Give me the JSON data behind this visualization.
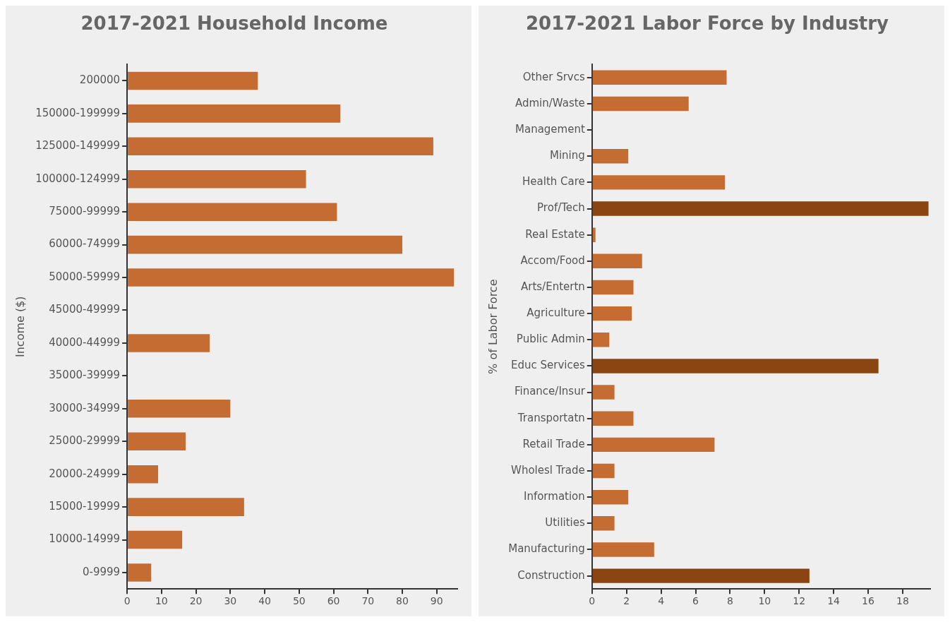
{
  "chart_data": [
    {
      "type": "bar",
      "orientation": "horizontal",
      "title": "2017-2021 Household Income",
      "ylabel": "Income ($)",
      "categories": [
        "200000",
        "150000-199999",
        "125000-149999",
        "100000-124999",
        "75000-99999",
        "60000-74999",
        "50000-59999",
        "45000-49999",
        "40000-44999",
        "35000-39999",
        "30000-34999",
        "25000-29999",
        "20000-24999",
        "15000-19999",
        "10000-14999",
        "0-9999"
      ],
      "values": [
        38,
        62,
        89,
        52,
        61,
        80,
        95,
        0,
        24,
        0,
        30,
        17,
        9,
        34,
        16,
        7
      ],
      "color": "#c46c32",
      "xlim": [
        0,
        96
      ],
      "xticks": [
        0,
        10,
        20,
        30,
        40,
        50,
        60,
        70,
        80,
        90
      ],
      "grid": false,
      "legend": false
    },
    {
      "type": "bar",
      "orientation": "horizontal",
      "title": "2017-2021 Labor Force by Industry",
      "ylabel": "% of Labor Force",
      "categories": [
        "Other Srvcs",
        "Admin/Waste",
        "Management",
        "Mining",
        "Health Care",
        "Prof/Tech",
        "Real Estate",
        "Accom/Food",
        "Arts/Entertn",
        "Agriculture",
        "Public Admin",
        "Educ Services",
        "Finance/Insur",
        "Transportatn",
        "Retail Trade",
        "Wholesl Trade",
        "Information",
        "Utilities",
        "Manufacturing",
        "Construction"
      ],
      "values": [
        7.8,
        5.6,
        0,
        2.1,
        7.7,
        19.5,
        0.2,
        2.9,
        2.4,
        2.3,
        1.0,
        16.6,
        1.3,
        2.4,
        7.1,
        1.3,
        2.1,
        1.3,
        3.6,
        12.6
      ],
      "colors": [
        "#c46c32",
        "#c46c32",
        "#c46c32",
        "#c46c32",
        "#c46c32",
        "#8b4513",
        "#c46c32",
        "#c46c32",
        "#c46c32",
        "#c46c32",
        "#c46c32",
        "#8b4513",
        "#c46c32",
        "#c46c32",
        "#c46c32",
        "#c46c32",
        "#c46c32",
        "#c46c32",
        "#c46c32",
        "#8b4513"
      ],
      "xlim": [
        0,
        19.6
      ],
      "xticks": [
        0,
        2,
        4,
        6,
        8,
        10,
        12,
        14,
        16,
        18
      ],
      "grid": false,
      "legend": false
    }
  ]
}
